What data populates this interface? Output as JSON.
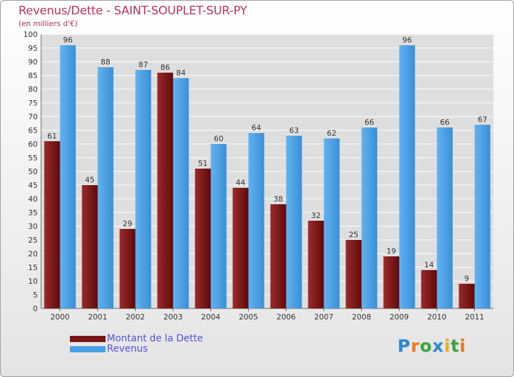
{
  "header": {
    "title": "Revenus/Dette - SAINT-SOUPLET-SUR-PY",
    "subtitle": "(en milliers d'€)"
  },
  "chart_data": {
    "type": "bar",
    "title": "Revenus/Dette - SAINT-SOUPLET-SUR-PY",
    "subtitle": "(en milliers d'€)",
    "xlabel": "",
    "ylabel": "",
    "categories": [
      "2000",
      "2001",
      "2002",
      "2003",
      "2004",
      "2005",
      "2006",
      "2007",
      "2008",
      "2009",
      "2010",
      "2011"
    ],
    "series": [
      {
        "name": "Montant de la Dette",
        "color": "#7a1414",
        "values": [
          61,
          45,
          29,
          86,
          51,
          44,
          38,
          32,
          25,
          19,
          14,
          9
        ]
      },
      {
        "name": "Revenus",
        "color": "#4aa0e6",
        "values": [
          96,
          88,
          87,
          84,
          60,
          64,
          63,
          62,
          66,
          96,
          66,
          67
        ]
      }
    ],
    "ylim": [
      0,
      100
    ],
    "ytick_step": 5,
    "yticks": [
      "0",
      "5",
      "10",
      "15",
      "20",
      "25",
      "30",
      "35",
      "40",
      "45",
      "50",
      "55",
      "60",
      "65",
      "70",
      "75",
      "80",
      "85",
      "90",
      "95",
      "100"
    ],
    "grid": true,
    "data_labels": true,
    "legend_position": "bottom-left"
  },
  "legend": {
    "items": [
      {
        "label": "Montant de la Dette",
        "color": "#7a1414"
      },
      {
        "label": "Revenus",
        "color": "#4aa0e6"
      }
    ]
  },
  "logo": {
    "text": "Proxiti",
    "letters": [
      {
        "char": "P",
        "color": "#2e87d4"
      },
      {
        "char": "r",
        "color": "#f07a1a"
      },
      {
        "char": "o",
        "color": "#3aa53a"
      },
      {
        "char": "x",
        "color": "#2e87d4"
      },
      {
        "char": "i",
        "color": "#e8b21a"
      },
      {
        "char": "t",
        "color": "#3aa53a"
      },
      {
        "char": "i",
        "color": "#f07a1a"
      }
    ]
  }
}
